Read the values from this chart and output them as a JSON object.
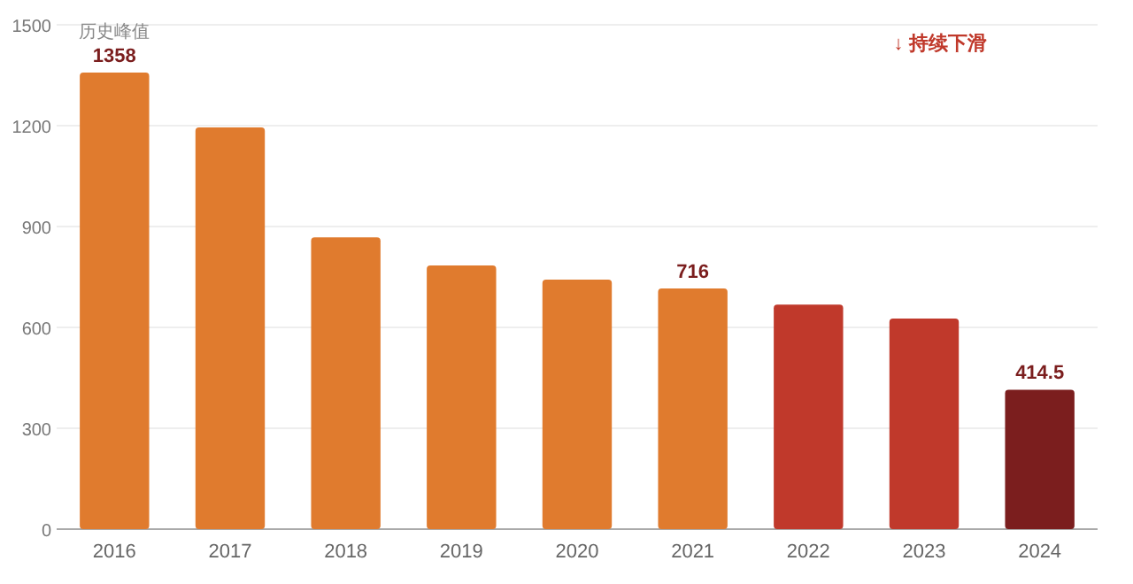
{
  "chart_data": {
    "type": "bar",
    "categories": [
      "2016",
      "2017",
      "2018",
      "2019",
      "2020",
      "2021",
      "2022",
      "2023",
      "2024"
    ],
    "values": [
      1358,
      1195,
      868,
      784,
      742,
      716,
      668,
      626,
      414.5
    ],
    "colors": [
      "#e07b2e",
      "#e07b2e",
      "#e07b2e",
      "#e07b2e",
      "#e07b2e",
      "#e07b2e",
      "#c0392b",
      "#c0392b",
      "#7b1e1e"
    ],
    "value_labels": [
      "1358",
      null,
      null,
      null,
      null,
      "716",
      null,
      null,
      "414.5"
    ],
    "ylim": [
      0,
      1500
    ],
    "yticks": [
      0,
      300,
      600,
      900,
      1200,
      1500
    ],
    "grid": "y",
    "annotations": [
      {
        "text": "历史峰值",
        "x": "2016",
        "y": 1358
      },
      "↓ 持续下滑"
    ]
  }
}
